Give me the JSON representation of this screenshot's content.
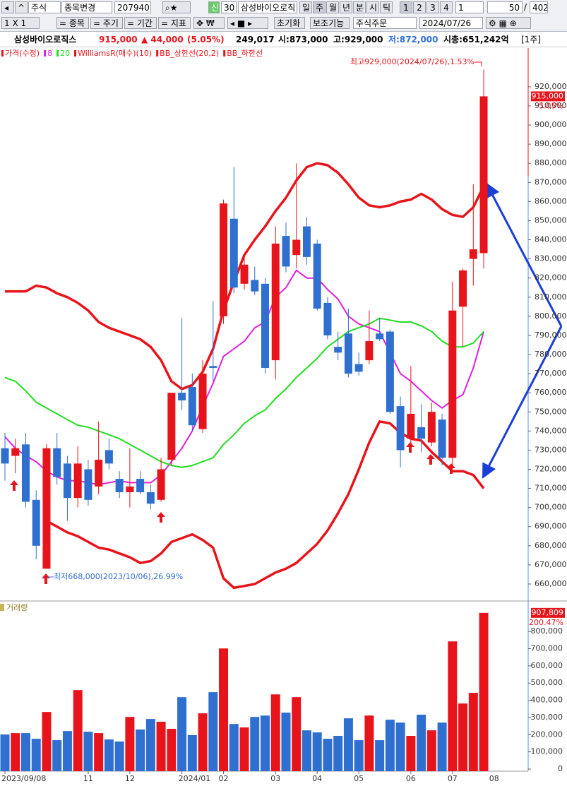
{
  "toolbar": {
    "market": "주식",
    "change": "종목변경",
    "code": "207940",
    "credit": "신",
    "credit_num": "30",
    "name": "삼성바이오로직",
    "periods": [
      "일",
      "주",
      "월",
      "년",
      "분",
      "시",
      "틱"
    ],
    "slots": [
      "1",
      "2",
      "3",
      "4"
    ],
    "count_select": "1",
    "count": "50",
    "separator": "/",
    "total": "402"
  },
  "toolbar2": {
    "layout": "1 X 1",
    "menus": [
      "= 종목",
      "= 주기",
      "= 기간",
      "= 지표"
    ],
    "reset": "초기화",
    "aux": "보조기능",
    "order": "주식주문",
    "date": "2024/07/26"
  },
  "quote": {
    "name": "삼성바이오로직스",
    "price": "915,000",
    "change": "▲ 44,000",
    "rate": "(5.05%)",
    "volume": "249,017",
    "open": "시:873,000",
    "high": "고:929,000",
    "low": "저:872,000",
    "cap": "시총:651,242억",
    "unit": "[1주]"
  },
  "chart_data": {
    "type": "candlestick",
    "legend": [
      {
        "name": "가격(수정)",
        "color": "#e8141b"
      },
      {
        "name": "8",
        "color": "#e020e0"
      },
      {
        "name": "20",
        "color": "#22dd22"
      },
      {
        "name": "WilliamsR(매수)(10)",
        "color": "#e8141b"
      },
      {
        "name": "BB_상한선(20,2)",
        "color": "#e8141b"
      },
      {
        "name": "BB_하한선",
        "color": "#e8141b"
      }
    ],
    "categories": [
      "2023/09/08",
      null,
      null,
      null,
      null,
      null,
      null,
      null,
      "11",
      null,
      null,
      null,
      "12",
      null,
      null,
      null,
      null,
      "2024/01",
      null,
      null,
      null,
      "02",
      null,
      null,
      null,
      null,
      "03",
      null,
      null,
      null,
      "04",
      null,
      null,
      null,
      "05",
      null,
      null,
      null,
      null,
      "06",
      null,
      null,
      null,
      "07",
      null,
      null,
      null
    ],
    "next_category": "08",
    "open": [
      731000,
      727000,
      733000,
      704000,
      668000,
      731000,
      723000,
      705000,
      720000,
      711000,
      730000,
      715000,
      708000,
      715000,
      708000,
      704000,
      725000,
      760000,
      763000,
      741000,
      774000,
      800000,
      851000,
      817000,
      819000,
      817000,
      777000,
      842000,
      832000,
      847000,
      838000,
      807000,
      784000,
      791000,
      775000,
      777000,
      791000,
      792000,
      753000,
      736000,
      742000,
      734000,
      746000,
      726000,
      805000,
      830000,
      833000
    ],
    "high": [
      739000,
      736000,
      739000,
      709000,
      733000,
      739000,
      727000,
      732000,
      725000,
      745000,
      736000,
      719000,
      731000,
      719000,
      712000,
      726000,
      760000,
      799000,
      770000,
      777000,
      808000,
      861000,
      878000,
      831000,
      826000,
      820000,
      847000,
      849000,
      880000,
      852000,
      840000,
      810000,
      792000,
      804000,
      781000,
      803000,
      799000,
      793000,
      758000,
      774000,
      754000,
      755000,
      749000,
      818000,
      825000,
      869000,
      929000
    ],
    "low": [
      714000,
      718000,
      700000,
      673000,
      668000,
      712000,
      693000,
      700000,
      701000,
      707000,
      720000,
      705000,
      700000,
      707000,
      699000,
      703000,
      722000,
      751000,
      740000,
      739000,
      766000,
      796000,
      812000,
      814000,
      811000,
      770000,
      767000,
      823000,
      825000,
      827000,
      803000,
      788000,
      777000,
      768000,
      769000,
      775000,
      787000,
      749000,
      721000,
      732000,
      729000,
      732000,
      722000,
      722000,
      784000,
      816000,
      825000
    ],
    "close": [
      723000,
      731000,
      703000,
      680000,
      731000,
      716000,
      705000,
      723000,
      704000,
      725000,
      723000,
      708000,
      711000,
      708000,
      702000,
      720000,
      760000,
      756000,
      743000,
      770000,
      773000,
      859000,
      815000,
      827000,
      813000,
      773000,
      838000,
      826000,
      840000,
      831000,
      804000,
      790000,
      781000,
      770000,
      771000,
      787000,
      788000,
      750000,
      730000,
      749000,
      736000,
      750000,
      726000,
      803000,
      824000,
      835000,
      915000
    ],
    "up_color": "#e8141b",
    "down_color": "#2f6fd0",
    "ylim": [
      651500,
      941000
    ],
    "yticks": [
      {
        "value": 660000,
        "label": "660,000"
      },
      {
        "value": 670000,
        "label": "670,000"
      },
      {
        "value": 680000,
        "label": "680,000"
      },
      {
        "value": 690000,
        "label": "690,000"
      },
      {
        "value": 700000,
        "label": "700,000"
      },
      {
        "value": 710000,
        "label": "710,000"
      },
      {
        "value": 720000,
        "label": "720,000"
      },
      {
        "value": 730000,
        "label": "730,000"
      },
      {
        "value": 740000,
        "label": "740,000"
      },
      {
        "value": 750000,
        "label": "750,000"
      },
      {
        "value": 760000,
        "label": "760,000"
      },
      {
        "value": 770000,
        "label": "770,000"
      },
      {
        "value": 780000,
        "label": "780,000"
      },
      {
        "value": 790000,
        "label": "790,000"
      },
      {
        "value": 800000,
        "label": "800,000"
      },
      {
        "value": 810000,
        "label": "810,000"
      },
      {
        "value": 820000,
        "label": "820,000"
      },
      {
        "value": 830000,
        "label": "830,000"
      },
      {
        "value": 840000,
        "label": "840,000"
      },
      {
        "value": 850000,
        "label": "850,000"
      },
      {
        "value": 860000,
        "label": "860,000"
      },
      {
        "value": 870000,
        "label": "870,000"
      },
      {
        "value": 880000,
        "label": "880,000"
      },
      {
        "value": 890000,
        "label": "890,000"
      },
      {
        "value": 900000,
        "label": "900,000"
      },
      {
        "value": 910000,
        "label": "910,000"
      },
      {
        "value": 920000,
        "label": "920,000"
      }
    ],
    "lines": [
      {
        "color": "#e020e0",
        "width": 2,
        "values": [
          737000,
          731000,
          727000,
          724000,
          719000,
          716000,
          714000,
          714000,
          713000,
          712000,
          713000,
          714000,
          713000,
          713000,
          713000,
          717000,
          724000,
          731000,
          740000,
          753000,
          765000,
          779000,
          783000,
          787000,
          794000,
          797000,
          810000,
          815000,
          824000,
          820000,
          820000,
          814000,
          809000,
          800000,
          796000,
          794000,
          792000,
          781000,
          770000,
          766000,
          761000,
          756000,
          752000,
          756000,
          759000,
          773000,
          792000
        ]
      },
      {
        "color": "#22dd22",
        "width": 2,
        "values": [
          768000,
          766000,
          761000,
          755000,
          752000,
          749000,
          746000,
          743000,
          742000,
          740000,
          738000,
          736000,
          733000,
          730000,
          727000,
          724000,
          722000,
          721000,
          722000,
          724000,
          726000,
          733000,
          738000,
          744000,
          748000,
          751000,
          757000,
          762000,
          768000,
          773000,
          778000,
          784000,
          788000,
          792000,
          794000,
          796000,
          799000,
          798000,
          797000,
          797000,
          795000,
          792000,
          787000,
          784000,
          784000,
          786000,
          792000
        ]
      },
      {
        "color": "#e8141b",
        "width": 3.5,
        "values": [
          813000,
          813000,
          813000,
          816000,
          815000,
          812000,
          810000,
          807000,
          803000,
          797000,
          794000,
          792000,
          790000,
          788000,
          784000,
          777000,
          766000,
          762000,
          764000,
          771000,
          783000,
          803000,
          818000,
          832000,
          840000,
          847000,
          855000,
          862000,
          871000,
          878000,
          880000,
          879000,
          875000,
          869000,
          862000,
          858000,
          857000,
          858000,
          860000,
          861000,
          864000,
          861000,
          856000,
          853000,
          852000,
          857000,
          868000
        ]
      },
      {
        "color": "#e8141b",
        "width": 3.5,
        "values": [
          null,
          null,
          null,
          null,
          693000,
          690000,
          687000,
          685000,
          682000,
          679000,
          678000,
          676000,
          674000,
          671000,
          672000,
          676000,
          682000,
          684000,
          686000,
          683000,
          679000,
          663000,
          658000,
          659000,
          660000,
          663000,
          666000,
          668000,
          671000,
          676000,
          681000,
          688000,
          697000,
          707000,
          720000,
          734000,
          745000,
          744000,
          739000,
          736000,
          735000,
          729000,
          724000,
          719000,
          719000,
          717000,
          710000
        ]
      }
    ],
    "annotations": {
      "high": "최고929,000(2024/07/26),1.53%",
      "low": "최저668,000(2023/10/06),26.99%"
    },
    "last_price": {
      "label": "915,000",
      "change": "5.05%"
    },
    "volume": {
      "title": "거래량",
      "values": [
        201000,
        209000,
        209000,
        176000,
        332000,
        168000,
        221000,
        459000,
        217000,
        209000,
        172000,
        160000,
        303000,
        230000,
        291000,
        275000,
        234000,
        418000,
        197000,
        324000,
        447000,
        701000,
        262000,
        242000,
        303000,
        311000,
        434000,
        328000,
        418000,
        225000,
        213000,
        176000,
        193000,
        295000,
        168000,
        311000,
        168000,
        287000,
        270000,
        193000,
        316000,
        225000,
        270000,
        742000,
        381000,
        443000,
        907809
      ],
      "ylim": [
        0,
        940000
      ],
      "yticks": [
        0,
        {
          "value": 100000,
          "label": "100,000"
        },
        {
          "value": 200000,
          "label": "200,000"
        },
        {
          "value": 300000,
          "label": "300,000"
        },
        {
          "value": 400000,
          "label": "400,000"
        },
        {
          "value": 500000,
          "label": "500,000"
        },
        {
          "value": 600000,
          "label": "600,000"
        },
        {
          "value": 700000,
          "label": "700,000"
        },
        {
          "value": 800000,
          "label": "800,000"
        }
      ],
      "last_label": "907,809",
      "last_change": "200.47%"
    }
  }
}
